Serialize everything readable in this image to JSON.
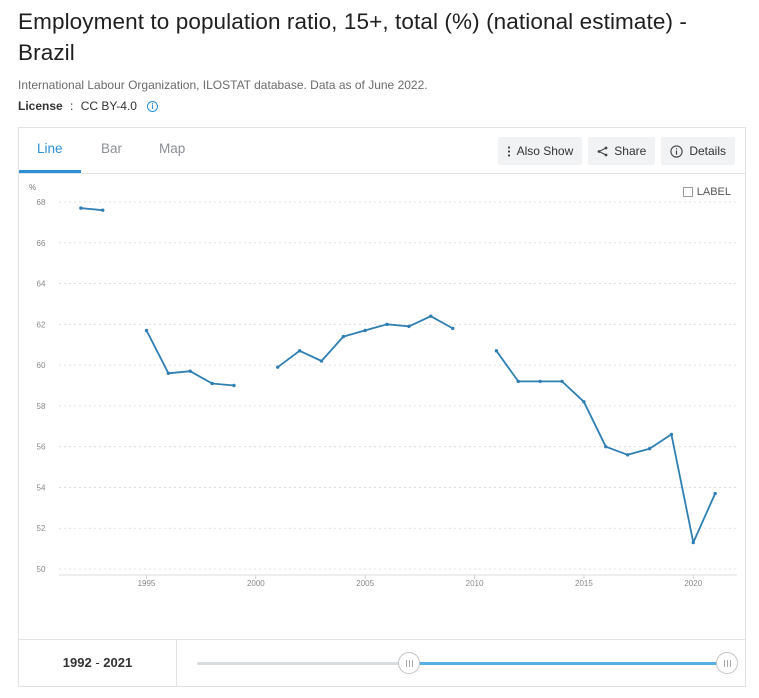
{
  "page": {
    "title": "Employment to population ratio, 15+, total (%) (national estimate) - Brazil",
    "source": "International Labour Organization, ILOSTAT database. Data as of June 2022.",
    "license_label": "License",
    "license_sep": " : ",
    "license_value": "CC BY-4.0"
  },
  "tabs": [
    {
      "label": "Line",
      "active": true
    },
    {
      "label": "Bar",
      "active": false
    },
    {
      "label": "Map",
      "active": false
    }
  ],
  "toolbar": {
    "also_show": "Also Show",
    "share": "Share",
    "details": "Details"
  },
  "label_toggle": "LABEL",
  "range": {
    "start": "1992",
    "sep": " - ",
    "end": "2021",
    "slider_start_fraction": 0.4,
    "slider_end_fraction": 1.0
  },
  "colors": {
    "accent": "#2c8fd6",
    "series": "#2f7fb3",
    "grid": "#d7d7d7",
    "slider_fill": "#5aaee6"
  },
  "chart_data": {
    "type": "line",
    "y_unit_label": "%",
    "ylim": [
      50,
      68
    ],
    "yticks": [
      50,
      52,
      54,
      56,
      58,
      60,
      62,
      64,
      66,
      68
    ],
    "xlim": [
      1991,
      2022
    ],
    "xticks": [
      1995,
      2000,
      2005,
      2010,
      2015,
      2020
    ],
    "grid": true,
    "series": [
      {
        "x": [
          1992,
          1993,
          1994,
          1995,
          1996,
          1997,
          1998,
          1999,
          2000,
          2001,
          2002,
          2003,
          2004,
          2005,
          2006,
          2007,
          2008,
          2009,
          2010,
          2011,
          2012,
          2013,
          2014,
          2015,
          2016,
          2017,
          2018,
          2019,
          2020,
          2021
        ],
        "values": [
          67.7,
          67.6,
          null,
          61.7,
          59.6,
          59.7,
          59.1,
          59.0,
          null,
          59.9,
          60.7,
          60.2,
          61.4,
          61.7,
          62.0,
          61.9,
          62.4,
          61.8,
          null,
          60.7,
          59.2,
          59.2,
          59.2,
          58.2,
          56.0,
          55.6,
          55.9,
          56.6,
          51.3,
          53.7
        ]
      }
    ]
  }
}
